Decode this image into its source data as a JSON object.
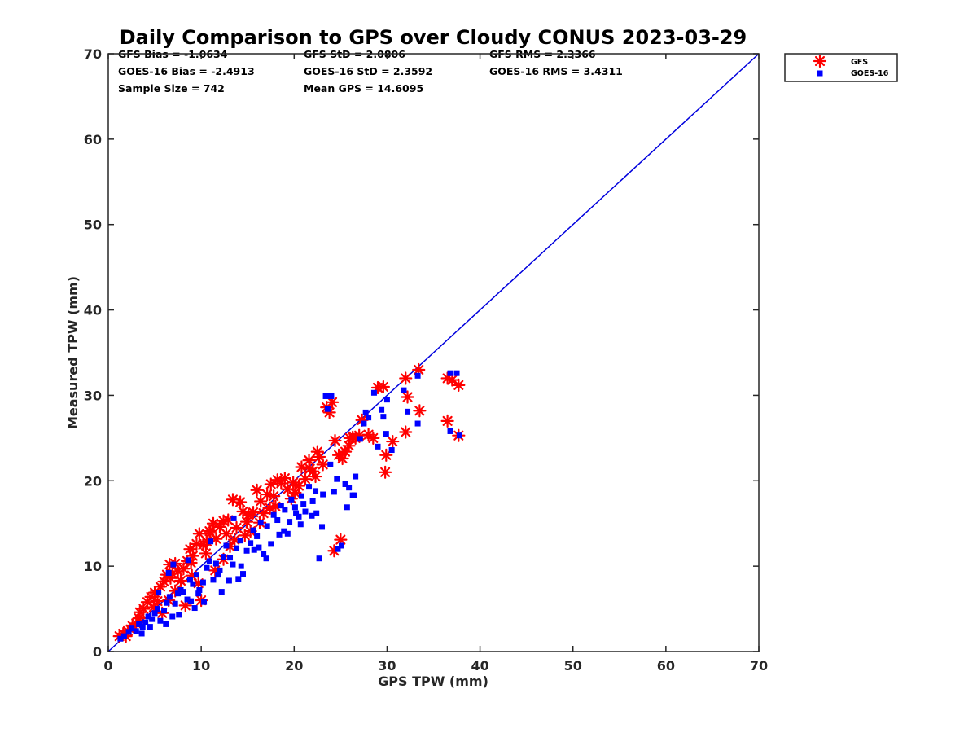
{
  "chart_data": {
    "type": "scatter",
    "title": "Daily Comparison to GPS over Cloudy CONUS 2023-03-29",
    "xlabel": "GPS TPW (mm)",
    "ylabel": "Measured TPW (mm)",
    "xlim": [
      0,
      70
    ],
    "ylim": [
      0,
      70
    ],
    "xticks": [
      "0",
      "10",
      "20",
      "30",
      "40",
      "50",
      "60",
      "70"
    ],
    "yticks": [
      "0",
      "10",
      "20",
      "30",
      "40",
      "50",
      "60",
      "70"
    ],
    "grid": false,
    "legend_position": "outside-top-right",
    "reference_line": {
      "name": "1:1",
      "color": "#0000dd",
      "x": [
        0,
        70
      ],
      "y": [
        0,
        70
      ]
    },
    "stats": [
      [
        "GFS Bias = -1.0634",
        "GFS StD = 2.0806",
        "GFS RMS = 2.3366"
      ],
      [
        "GOES-16 Bias = -2.4913",
        "GOES-16 StD = 2.3592",
        "GOES-16 RMS = 3.4311"
      ],
      [
        "Sample Size = 742",
        "Mean GPS = 14.6095"
      ]
    ],
    "series": [
      {
        "name": "GFS",
        "marker": "asterisk",
        "color": "#ff0000",
        "points": [
          [
            1.2,
            1.8
          ],
          [
            1.6,
            2.1
          ],
          [
            2.1,
            2.4
          ],
          [
            2.6,
            3.0
          ],
          [
            3.0,
            3.3
          ],
          [
            3.4,
            4.6
          ],
          [
            3.8,
            5.0
          ],
          [
            4.2,
            5.8
          ],
          [
            4.6,
            6.4
          ],
          [
            5.0,
            6.9
          ],
          [
            5.3,
            5.9
          ],
          [
            5.6,
            7.6
          ],
          [
            6.0,
            8.2
          ],
          [
            6.3,
            9.0
          ],
          [
            6.6,
            10.2
          ],
          [
            6.9,
            9.1
          ],
          [
            7.2,
            10.3
          ],
          [
            7.5,
            9.4
          ],
          [
            7.8,
            8.3
          ],
          [
            8.1,
            9.7
          ],
          [
            8.5,
            10.6
          ],
          [
            8.8,
            12.0
          ],
          [
            9.1,
            11.2
          ],
          [
            9.5,
            12.6
          ],
          [
            9.8,
            13.8
          ],
          [
            10.2,
            12.5
          ],
          [
            10.6,
            12.9
          ],
          [
            10.9,
            14.1
          ],
          [
            11.3,
            15.0
          ],
          [
            11.6,
            13.2
          ],
          [
            12.0,
            14.6
          ],
          [
            12.4,
            15.3
          ],
          [
            12.7,
            13.8
          ],
          [
            13.1,
            12.3
          ],
          [
            13.4,
            17.8
          ],
          [
            13.8,
            14.5
          ],
          [
            14.2,
            17.5
          ],
          [
            14.5,
            16.4
          ],
          [
            14.9,
            15.2
          ],
          [
            15.3,
            14.1
          ],
          [
            15.6,
            16.3
          ],
          [
            16.0,
            18.9
          ],
          [
            16.4,
            17.6
          ],
          [
            16.7,
            16.2
          ],
          [
            17.1,
            18.4
          ],
          [
            17.5,
            19.6
          ],
          [
            17.8,
            18.2
          ],
          [
            18.2,
            20.1
          ],
          [
            18.6,
            19.7
          ],
          [
            19.0,
            20.3
          ],
          [
            19.3,
            19.0
          ],
          [
            19.7,
            17.9
          ],
          [
            20.1,
            18.6
          ],
          [
            20.5,
            19.4
          ],
          [
            20.8,
            21.6
          ],
          [
            21.2,
            20.2
          ],
          [
            21.6,
            22.4
          ],
          [
            22.0,
            21.1
          ],
          [
            22.3,
            20.5
          ],
          [
            22.7,
            22.8
          ],
          [
            23.1,
            21.9
          ],
          [
            23.5,
            28.6
          ],
          [
            23.8,
            28.0
          ],
          [
            24.1,
            29.2
          ],
          [
            24.4,
            24.7
          ],
          [
            24.8,
            23.0
          ],
          [
            25.2,
            22.6
          ],
          [
            25.5,
            23.4
          ],
          [
            25.9,
            24.1
          ],
          [
            26.3,
            25.1
          ],
          [
            26.6,
            25.0
          ],
          [
            27.0,
            25.3
          ],
          [
            28.0,
            25.4
          ],
          [
            28.5,
            25.0
          ],
          [
            29.0,
            30.9
          ],
          [
            29.6,
            31.0
          ],
          [
            29.8,
            21.0
          ],
          [
            29.9,
            23.0
          ],
          [
            30.6,
            24.6
          ],
          [
            32.0,
            25.7
          ],
          [
            32.0,
            32.0
          ],
          [
            32.2,
            29.8
          ],
          [
            33.4,
            33.0
          ],
          [
            33.5,
            28.2
          ],
          [
            36.5,
            32.0
          ],
          [
            36.5,
            27.0
          ],
          [
            37.0,
            31.8
          ],
          [
            37.7,
            31.2
          ],
          [
            37.7,
            25.3
          ],
          [
            25.0,
            13.1
          ],
          [
            24.3,
            11.8
          ],
          [
            11.0,
            13.9
          ],
          [
            10.5,
            11.5
          ],
          [
            9.7,
            8.0
          ],
          [
            10.0,
            6.0
          ],
          [
            4.9,
            5.2
          ],
          [
            5.8,
            4.5
          ],
          [
            8.3,
            5.4
          ],
          [
            6.5,
            6.0
          ],
          [
            7.2,
            7.1
          ],
          [
            11.5,
            9.5
          ],
          [
            13.6,
            13.1
          ],
          [
            15.1,
            16.0
          ],
          [
            12.4,
            10.8
          ],
          [
            9.0,
            8.9
          ],
          [
            19.9,
            19.8
          ],
          [
            21.7,
            21.4
          ],
          [
            18.0,
            17.0
          ],
          [
            16.3,
            15.1
          ],
          [
            22.5,
            23.4
          ],
          [
            26.0,
            25.0
          ],
          [
            27.3,
            27.1
          ],
          [
            14.7,
            13.6
          ],
          [
            8.9,
            10.4
          ],
          [
            3.3,
            3.9
          ],
          [
            2.4,
            2.6
          ],
          [
            1.9,
            1.8
          ],
          [
            6.7,
            8.6
          ],
          [
            12.9,
            15.4
          ],
          [
            17.4,
            16.8
          ]
        ]
      },
      {
        "name": "GOES-16",
        "marker": "square",
        "color": "#0000ff",
        "points": [
          [
            1.3,
            1.5
          ],
          [
            1.7,
            1.8
          ],
          [
            2.2,
            2.3
          ],
          [
            2.5,
            2.7
          ],
          [
            3.0,
            2.4
          ],
          [
            3.3,
            3.2
          ],
          [
            3.7,
            2.9
          ],
          [
            4.0,
            3.4
          ],
          [
            4.3,
            4.1
          ],
          [
            4.7,
            3.8
          ],
          [
            5.0,
            4.5
          ],
          [
            5.3,
            5.0
          ],
          [
            5.6,
            3.6
          ],
          [
            6.0,
            4.8
          ],
          [
            6.3,
            5.7
          ],
          [
            6.6,
            6.4
          ],
          [
            6.9,
            4.1
          ],
          [
            7.2,
            5.6
          ],
          [
            7.5,
            6.8
          ],
          [
            7.8,
            7.2
          ],
          [
            8.1,
            7.0
          ],
          [
            8.5,
            6.1
          ],
          [
            8.8,
            8.4
          ],
          [
            9.1,
            7.9
          ],
          [
            9.5,
            9.0
          ],
          [
            9.8,
            7.2
          ],
          [
            10.2,
            8.1
          ],
          [
            10.6,
            9.8
          ],
          [
            10.9,
            10.6
          ],
          [
            11.3,
            8.4
          ],
          [
            11.6,
            10.3
          ],
          [
            12.0,
            9.5
          ],
          [
            12.4,
            11.1
          ],
          [
            12.7,
            12.4
          ],
          [
            13.1,
            11.0
          ],
          [
            13.4,
            10.2
          ],
          [
            13.8,
            12.1
          ],
          [
            14.2,
            13.0
          ],
          [
            14.5,
            9.1
          ],
          [
            14.9,
            11.8
          ],
          [
            15.3,
            12.7
          ],
          [
            15.6,
            14.2
          ],
          [
            16.0,
            13.5
          ],
          [
            16.4,
            15.1
          ],
          [
            16.7,
            11.4
          ],
          [
            17.1,
            14.7
          ],
          [
            17.5,
            12.6
          ],
          [
            17.8,
            16.0
          ],
          [
            18.2,
            15.4
          ],
          [
            18.6,
            17.1
          ],
          [
            19.0,
            16.6
          ],
          [
            19.3,
            13.8
          ],
          [
            19.7,
            17.8
          ],
          [
            20.1,
            16.9
          ],
          [
            20.5,
            15.8
          ],
          [
            20.8,
            18.2
          ],
          [
            21.2,
            16.4
          ],
          [
            21.6,
            19.3
          ],
          [
            22.0,
            17.6
          ],
          [
            22.3,
            18.8
          ],
          [
            22.7,
            10.9
          ],
          [
            23.1,
            18.4
          ],
          [
            23.4,
            29.9
          ],
          [
            23.6,
            28.4
          ],
          [
            24.0,
            29.9
          ],
          [
            24.3,
            18.7
          ],
          [
            24.7,
            12.0
          ],
          [
            25.1,
            12.4
          ],
          [
            25.5,
            19.6
          ],
          [
            25.9,
            19.2
          ],
          [
            26.3,
            18.3
          ],
          [
            26.6,
            20.5
          ],
          [
            27.1,
            24.9
          ],
          [
            27.7,
            28.0
          ],
          [
            28.0,
            27.4
          ],
          [
            28.6,
            30.3
          ],
          [
            29.4,
            28.3
          ],
          [
            29.6,
            27.5
          ],
          [
            29.9,
            25.5
          ],
          [
            30.5,
            23.6
          ],
          [
            31.8,
            30.6
          ],
          [
            32.2,
            28.1
          ],
          [
            33.3,
            32.3
          ],
          [
            33.3,
            26.7
          ],
          [
            36.8,
            32.6
          ],
          [
            36.8,
            25.8
          ],
          [
            37.5,
            32.6
          ],
          [
            37.8,
            25.3
          ],
          [
            5.4,
            6.9
          ],
          [
            6.5,
            9.2
          ],
          [
            7.0,
            10.2
          ],
          [
            8.6,
            10.7
          ],
          [
            9.3,
            5.1
          ],
          [
            10.3,
            5.8
          ],
          [
            11.0,
            12.9
          ],
          [
            12.2,
            7.0
          ],
          [
            13.5,
            15.6
          ],
          [
            14.0,
            8.5
          ],
          [
            15.7,
            11.9
          ],
          [
            17.0,
            10.9
          ],
          [
            18.4,
            13.7
          ],
          [
            19.5,
            15.2
          ],
          [
            20.2,
            16.2
          ],
          [
            21.0,
            17.3
          ],
          [
            21.9,
            15.9
          ],
          [
            23.0,
            14.6
          ],
          [
            24.6,
            20.2
          ],
          [
            25.7,
            16.9
          ],
          [
            26.5,
            18.3
          ],
          [
            3.6,
            2.1
          ],
          [
            4.5,
            2.9
          ],
          [
            6.2,
            3.2
          ],
          [
            7.6,
            4.3
          ],
          [
            8.9,
            5.9
          ],
          [
            9.7,
            6.8
          ],
          [
            11.8,
            9.0
          ],
          [
            13.0,
            8.3
          ],
          [
            14.3,
            10.0
          ],
          [
            16.2,
            12.2
          ],
          [
            18.9,
            14.1
          ],
          [
            20.7,
            14.9
          ],
          [
            22.4,
            16.2
          ],
          [
            23.9,
            21.9
          ],
          [
            27.5,
            26.7
          ],
          [
            29.0,
            24.0
          ],
          [
            30.0,
            29.5
          ]
        ]
      }
    ]
  }
}
